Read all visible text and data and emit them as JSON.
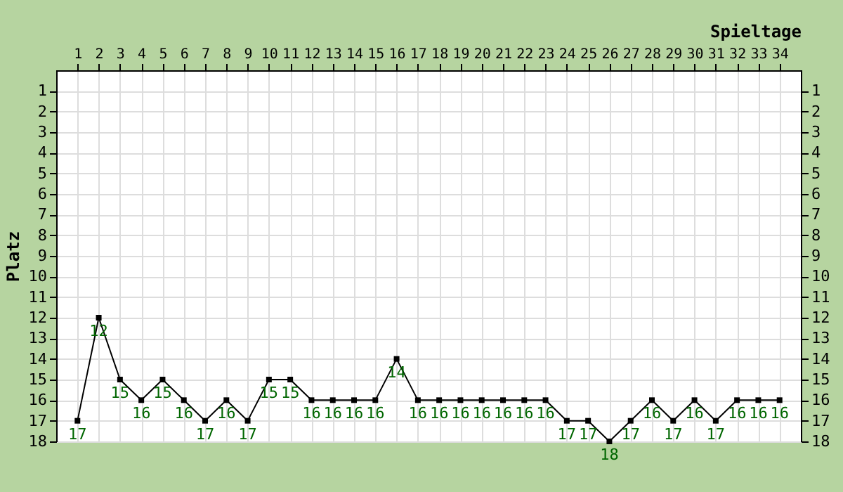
{
  "chart_data": {
    "type": "line",
    "xlabel": "Spieltage",
    "ylabel": "Platz",
    "x": [
      1,
      2,
      3,
      4,
      5,
      6,
      7,
      8,
      9,
      10,
      11,
      12,
      13,
      14,
      15,
      16,
      17,
      18,
      19,
      20,
      21,
      22,
      23,
      24,
      25,
      26,
      27,
      28,
      29,
      30,
      31,
      32,
      33,
      34
    ],
    "series": [
      {
        "color": "#000000",
        "values": [
          17,
          12,
          15,
          16,
          15,
          16,
          17,
          16,
          17,
          15,
          15,
          16,
          16,
          16,
          16,
          14,
          16,
          16,
          16,
          16,
          16,
          16,
          16,
          17,
          17,
          18,
          17,
          16,
          17,
          16,
          17,
          16,
          16,
          16
        ]
      }
    ],
    "xlim": [
      0,
      35
    ],
    "xticks": [
      1,
      2,
      3,
      4,
      5,
      6,
      7,
      8,
      9,
      10,
      11,
      12,
      13,
      14,
      15,
      16,
      17,
      18,
      19,
      20,
      21,
      22,
      23,
      24,
      25,
      26,
      27,
      28,
      29,
      30,
      31,
      32,
      33,
      34
    ],
    "ylim": [
      18,
      0
    ],
    "yticks": [
      1,
      2,
      3,
      4,
      5,
      6,
      7,
      8,
      9,
      10,
      11,
      12,
      13,
      14,
      15,
      16,
      17,
      18
    ],
    "y2lim": [
      18,
      0
    ],
    "y2ticks": [
      1,
      2,
      3,
      4,
      5,
      6,
      7,
      8,
      9,
      10,
      11,
      12,
      13,
      14,
      15,
      16,
      17,
      18
    ],
    "grid": true,
    "marker": "square",
    "line_style": "solid",
    "data_labels": true
  }
}
